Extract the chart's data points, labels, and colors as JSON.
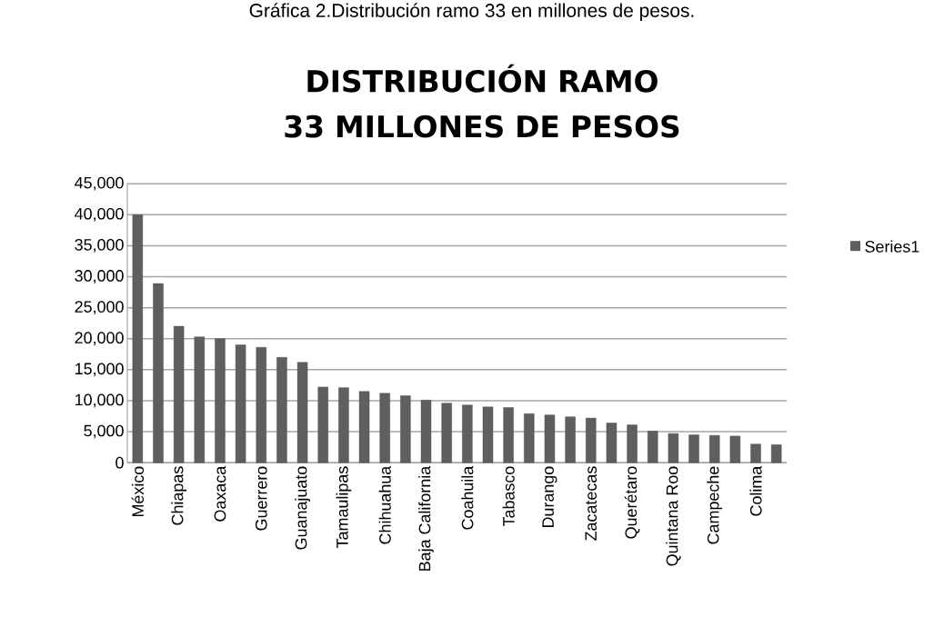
{
  "chart_data": {
    "type": "bar",
    "title": "DISTRIBUCIÓN RAMO 33 MILLONES DE PESOS",
    "annotations": [
      "Gráfica  2.Distribución ramo 33 en millones de pesos."
    ],
    "categories": [
      "México",
      null,
      "Chiapas",
      null,
      "Oaxaca",
      null,
      "Guerrero",
      null,
      "Guanajuato",
      null,
      "Tamaulipas",
      null,
      "Chihuahua",
      null,
      "Baja California",
      null,
      "Coahuila",
      null,
      "Tabasco",
      null,
      "Durango",
      null,
      "Zacatecas",
      null,
      "Querétaro",
      null,
      "Quintana Roo",
      null,
      "Campeche",
      null,
      "Colima",
      null
    ],
    "series": [
      {
        "name": "Series1",
        "color": "#5f5f5f",
        "values": [
          40000,
          28900,
          22000,
          20300,
          20000,
          19000,
          18600,
          17000,
          16200,
          12200,
          12100,
          11500,
          11200,
          10800,
          10100,
          9600,
          9300,
          9000,
          8900,
          7900,
          7700,
          7400,
          7200,
          6400,
          6100,
          5100,
          4700,
          4500,
          4400,
          4300,
          3000,
          2900
        ]
      }
    ],
    "ylim": [
      0,
      45000
    ],
    "yticks": [
      0,
      {
        "value": 5000,
        "label": "5,000"
      },
      {
        "value": 10000,
        "label": "10,000"
      },
      {
        "value": 15000,
        "label": "15,000"
      },
      {
        "value": 20000,
        "label": "20,000"
      },
      {
        "value": 25000,
        "label": "25,000"
      },
      {
        "value": 30000,
        "label": "30,000"
      },
      {
        "value": 35000,
        "label": "35,000"
      },
      {
        "value": 40000,
        "label": "40,000"
      },
      {
        "value": 45000,
        "label": "45,000"
      }
    ],
    "grid": "y",
    "legend": "right"
  }
}
